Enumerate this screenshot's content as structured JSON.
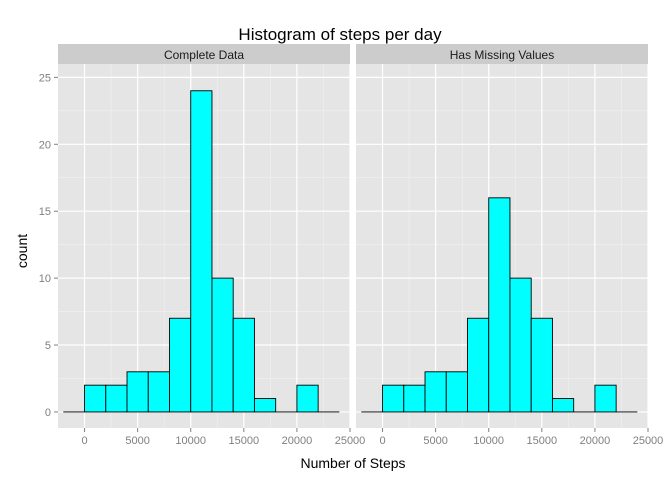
{
  "chart_data": {
    "type": "bar",
    "title": "Histogram of steps per day",
    "xlabel": "Number of Steps",
    "ylabel": "count",
    "xlim": [
      -2500,
      25000
    ],
    "ylim": [
      -1.2,
      26
    ],
    "xticks": [
      0,
      5000,
      10000,
      15000,
      20000,
      25000
    ],
    "yticks": [
      0,
      5,
      10,
      15,
      20,
      25
    ],
    "bin_width": 2000,
    "bin_starts": [
      -2000,
      0,
      2000,
      4000,
      6000,
      8000,
      10000,
      12000,
      14000,
      16000,
      18000,
      20000,
      22000
    ],
    "grid": true,
    "colors": {
      "fill": "#00ffff",
      "stroke": "#000000",
      "panel": "#e5e5e5",
      "strip": "#cccccc",
      "grid": "#ffffff"
    },
    "panels": [
      {
        "name": "Complete Data",
        "values": [
          0,
          2,
          2,
          3,
          3,
          7,
          24,
          10,
          7,
          1,
          0,
          2,
          0
        ]
      },
      {
        "name": "Has Missing Values",
        "values": [
          0,
          2,
          2,
          3,
          3,
          7,
          16,
          10,
          7,
          1,
          0,
          2,
          0
        ]
      }
    ]
  }
}
